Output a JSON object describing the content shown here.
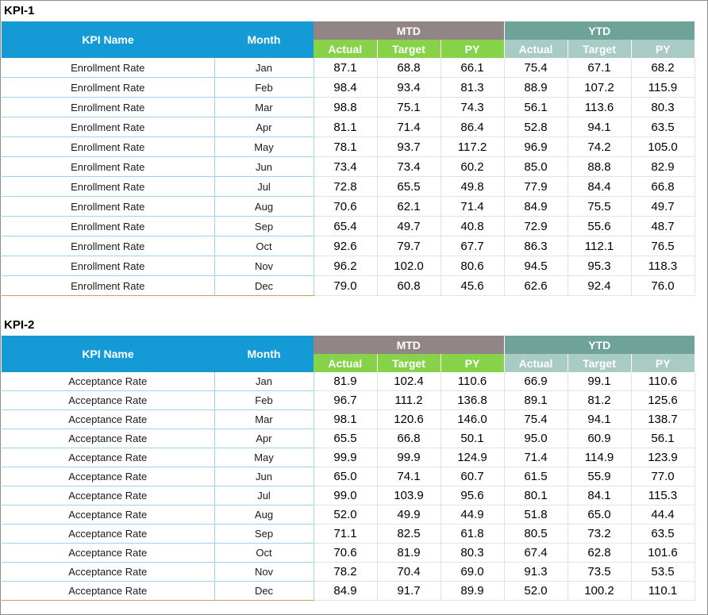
{
  "headers": {
    "kpi_name": "KPI Name",
    "month": "Month",
    "mtd": "MTD",
    "ytd": "YTD",
    "actual": "Actual",
    "target": "Target",
    "py": "PY"
  },
  "kpis": [
    {
      "title": "KPI-1",
      "rows": [
        {
          "name": "Enrollment Rate",
          "month": "Jan",
          "v": [
            "87.1",
            "68.8",
            "66.1",
            "75.4",
            "67.1",
            "68.2"
          ]
        },
        {
          "name": "Enrollment Rate",
          "month": "Feb",
          "v": [
            "98.4",
            "93.4",
            "81.3",
            "88.9",
            "107.2",
            "115.9"
          ]
        },
        {
          "name": "Enrollment Rate",
          "month": "Mar",
          "v": [
            "98.8",
            "75.1",
            "74.3",
            "56.1",
            "113.6",
            "80.3"
          ]
        },
        {
          "name": "Enrollment Rate",
          "month": "Apr",
          "v": [
            "81.1",
            "71.4",
            "86.4",
            "52.8",
            "94.1",
            "63.5"
          ]
        },
        {
          "name": "Enrollment Rate",
          "month": "May",
          "v": [
            "78.1",
            "93.7",
            "117.2",
            "96.9",
            "74.2",
            "105.0"
          ]
        },
        {
          "name": "Enrollment Rate",
          "month": "Jun",
          "v": [
            "73.4",
            "73.4",
            "60.2",
            "85.0",
            "88.8",
            "82.9"
          ]
        },
        {
          "name": "Enrollment Rate",
          "month": "Jul",
          "v": [
            "72.8",
            "65.5",
            "49.8",
            "77.9",
            "84.4",
            "66.8"
          ]
        },
        {
          "name": "Enrollment Rate",
          "month": "Aug",
          "v": [
            "70.6",
            "62.1",
            "71.4",
            "84.9",
            "75.5",
            "49.7"
          ]
        },
        {
          "name": "Enrollment Rate",
          "month": "Sep",
          "v": [
            "65.4",
            "49.7",
            "40.8",
            "72.9",
            "55.6",
            "48.7"
          ]
        },
        {
          "name": "Enrollment Rate",
          "month": "Oct",
          "v": [
            "92.6",
            "79.7",
            "67.7",
            "86.3",
            "112.1",
            "76.5"
          ]
        },
        {
          "name": "Enrollment Rate",
          "month": "Nov",
          "v": [
            "96.2",
            "102.0",
            "80.6",
            "94.5",
            "95.3",
            "118.3"
          ]
        },
        {
          "name": "Enrollment Rate",
          "month": "Dec",
          "v": [
            "79.0",
            "60.8",
            "45.6",
            "62.6",
            "92.4",
            "76.0"
          ]
        }
      ]
    },
    {
      "title": "KPI-2",
      "rows": [
        {
          "name": "Acceptance Rate",
          "month": "Jan",
          "v": [
            "81.9",
            "102.4",
            "110.6",
            "66.9",
            "99.1",
            "110.6"
          ]
        },
        {
          "name": "Acceptance Rate",
          "month": "Feb",
          "v": [
            "96.7",
            "111.2",
            "136.8",
            "89.1",
            "81.2",
            "125.6"
          ]
        },
        {
          "name": "Acceptance Rate",
          "month": "Mar",
          "v": [
            "98.1",
            "120.6",
            "146.0",
            "75.4",
            "94.1",
            "138.7"
          ]
        },
        {
          "name": "Acceptance Rate",
          "month": "Apr",
          "v": [
            "65.5",
            "66.8",
            "50.1",
            "95.0",
            "60.9",
            "56.1"
          ]
        },
        {
          "name": "Acceptance Rate",
          "month": "May",
          "v": [
            "99.9",
            "99.9",
            "124.9",
            "71.4",
            "114.9",
            "123.9"
          ]
        },
        {
          "name": "Acceptance Rate",
          "month": "Jun",
          "v": [
            "65.0",
            "74.1",
            "60.7",
            "61.5",
            "55.9",
            "77.0"
          ]
        },
        {
          "name": "Acceptance Rate",
          "month": "Jul",
          "v": [
            "99.0",
            "103.9",
            "95.6",
            "80.1",
            "84.1",
            "115.3"
          ]
        },
        {
          "name": "Acceptance Rate",
          "month": "Aug",
          "v": [
            "52.0",
            "49.9",
            "44.9",
            "51.8",
            "65.0",
            "44.4"
          ]
        },
        {
          "name": "Acceptance Rate",
          "month": "Sep",
          "v": [
            "71.1",
            "82.5",
            "61.8",
            "80.5",
            "73.2",
            "63.5"
          ]
        },
        {
          "name": "Acceptance Rate",
          "month": "Oct",
          "v": [
            "70.6",
            "81.9",
            "80.3",
            "67.4",
            "62.8",
            "101.6"
          ]
        },
        {
          "name": "Acceptance Rate",
          "month": "Nov",
          "v": [
            "78.2",
            "70.4",
            "69.0",
            "91.3",
            "73.5",
            "53.5"
          ]
        },
        {
          "name": "Acceptance Rate",
          "month": "Dec",
          "v": [
            "84.9",
            "91.7",
            "89.9",
            "52.0",
            "100.2",
            "110.1"
          ]
        }
      ]
    }
  ]
}
